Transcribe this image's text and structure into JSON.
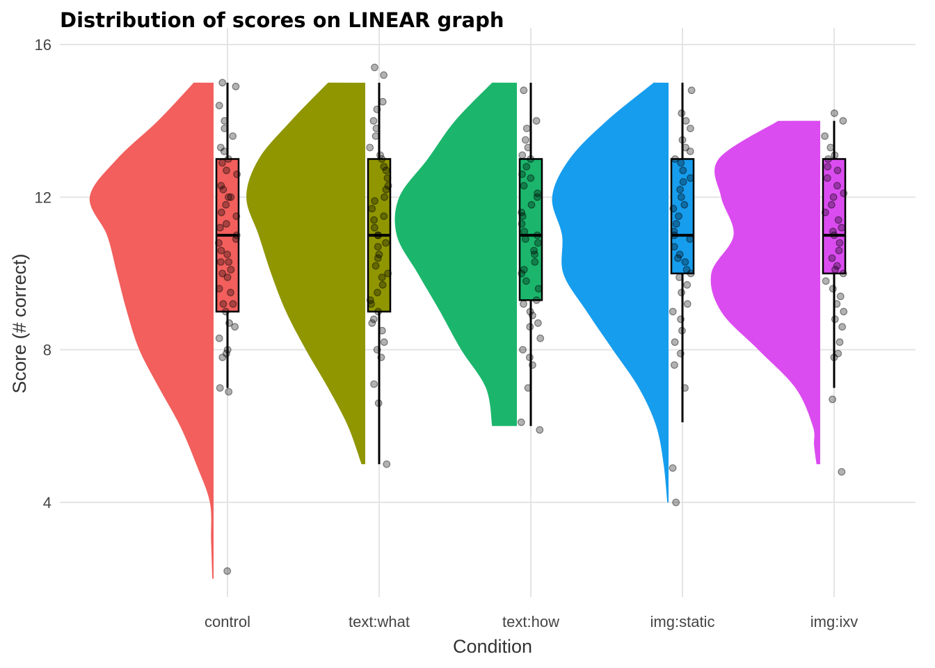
{
  "chart_data": {
    "type": "raincloud",
    "title": "Distribution of scores on LINEAR graph",
    "xlabel": "Condition",
    "ylabel": "Score (# correct)",
    "ylim": [
      1.5,
      16
    ],
    "yticks": [
      4,
      8,
      12,
      16
    ],
    "grid": true,
    "legend": "none",
    "categories": [
      "control",
      "text:what",
      "text:how",
      "img:static",
      "img:ixv"
    ],
    "series": [
      {
        "category": "control",
        "color": "#F25F5C",
        "box": {
          "whisker_low": 7,
          "q1": 9,
          "median": 11,
          "q3": 13,
          "whisker_high": 15
        },
        "density": {
          "y": [
            2,
            3,
            4,
            5,
            6,
            7,
            8,
            9,
            10,
            11,
            12,
            13,
            14,
            15
          ],
          "w": [
            0.01,
            0.02,
            0.03,
            0.14,
            0.27,
            0.44,
            0.6,
            0.7,
            0.78,
            0.86,
            1.0,
            0.78,
            0.45,
            0.16
          ]
        },
        "points": [
          2.2,
          6.9,
          7.0,
          7.8,
          7.9,
          8.0,
          8.3,
          8.6,
          8.7,
          9.0,
          9.2,
          9.2,
          9.5,
          9.6,
          9.9,
          10.0,
          10.1,
          10.3,
          10.3,
          10.5,
          10.6,
          10.8,
          10.9,
          11.0,
          11.2,
          11.3,
          11.5,
          11.6,
          11.8,
          12.0,
          12.0,
          12.2,
          12.3,
          12.6,
          12.7,
          12.9,
          13.0,
          13.2,
          13.3,
          13.6,
          13.8,
          14.0,
          14.4,
          14.9,
          15.0
        ]
      },
      {
        "category": "text:what",
        "color": "#909600",
        "box": {
          "whisker_low": 5,
          "q1": 9,
          "median": 11,
          "q3": 13,
          "whisker_high": 15
        },
        "density": {
          "y": [
            5,
            6,
            7,
            8,
            9,
            10,
            11,
            12,
            13,
            14,
            15
          ],
          "w": [
            0.03,
            0.14,
            0.3,
            0.48,
            0.64,
            0.76,
            0.86,
            0.96,
            0.86,
            0.6,
            0.3
          ]
        },
        "points": [
          5.0,
          6.6,
          7.1,
          7.8,
          8.0,
          8.2,
          8.5,
          8.7,
          8.8,
          9.0,
          9.2,
          9.3,
          9.5,
          9.7,
          9.9,
          10.0,
          10.2,
          10.4,
          10.5,
          10.7,
          10.8,
          11.0,
          11.0,
          11.2,
          11.4,
          11.5,
          11.7,
          11.9,
          12.0,
          12.2,
          12.3,
          12.5,
          12.7,
          12.8,
          13.0,
          13.1,
          13.3,
          13.6,
          13.8,
          14.0,
          14.3,
          14.5,
          15.2,
          15.4
        ]
      },
      {
        "category": "text:how",
        "color": "#1BB66C",
        "box": {
          "whisker_low": 6,
          "q1": 9.3,
          "median": 11,
          "q3": 13,
          "whisker_high": 15
        },
        "density": {
          "y": [
            6,
            7,
            8,
            9,
            10,
            11,
            12,
            13,
            14,
            15
          ],
          "w": [
            0.2,
            0.25,
            0.45,
            0.62,
            0.8,
            0.97,
            0.95,
            0.72,
            0.5,
            0.2
          ]
        },
        "points": [
          5.9,
          6.1,
          7.0,
          7.6,
          7.8,
          8.0,
          8.3,
          8.6,
          8.7,
          8.9,
          9.0,
          9.2,
          9.3,
          9.6,
          9.8,
          10.0,
          10.1,
          10.3,
          10.5,
          10.6,
          10.8,
          10.9,
          11.0,
          11.1,
          11.3,
          11.5,
          11.6,
          11.8,
          12.0,
          12.1,
          12.3,
          12.5,
          12.6,
          12.8,
          13.0,
          13.1,
          13.3,
          13.5,
          13.8,
          14.0,
          14.8
        ]
      },
      {
        "category": "img:static",
        "color": "#169DEE",
        "box": {
          "whisker_low": 6.1,
          "q1": 10,
          "median": 11,
          "q3": 13,
          "whisker_high": 15
        },
        "density": {
          "y": [
            4,
            5,
            6,
            7,
            8,
            9,
            10,
            11,
            12,
            13,
            14,
            15
          ],
          "w": [
            0.01,
            0.04,
            0.1,
            0.24,
            0.45,
            0.66,
            0.85,
            0.86,
            0.94,
            0.8,
            0.5,
            0.12
          ]
        },
        "points": [
          4.0,
          4.9,
          7.0,
          7.6,
          7.9,
          8.2,
          8.5,
          8.8,
          9.0,
          9.2,
          9.5,
          9.7,
          9.9,
          10.0,
          10.1,
          10.3,
          10.4,
          10.5,
          10.7,
          10.9,
          11.0,
          11.1,
          11.3,
          11.5,
          11.7,
          11.8,
          12.0,
          12.2,
          12.4,
          12.5,
          12.7,
          12.9,
          13.0,
          13.2,
          13.3,
          13.5,
          13.8,
          14.0,
          14.2,
          14.8
        ]
      },
      {
        "category": "img:ixv",
        "color": "#DB4CF0",
        "box": {
          "whisker_low": 7,
          "q1": 10,
          "median": 11,
          "q3": 13,
          "whisker_high": 14
        },
        "density": {
          "y": [
            5,
            5.5,
            6,
            7,
            8,
            9,
            10,
            11,
            12,
            13,
            14
          ],
          "w": [
            0.03,
            0.05,
            0.06,
            0.2,
            0.5,
            0.8,
            0.88,
            0.7,
            0.8,
            0.82,
            0.34
          ]
        },
        "points": [
          4.8,
          6.7,
          7.8,
          7.9,
          8.2,
          8.6,
          8.8,
          9.0,
          9.2,
          9.4,
          9.6,
          9.8,
          10.0,
          10.1,
          10.2,
          10.4,
          10.6,
          10.8,
          11.0,
          11.1,
          11.2,
          11.4,
          11.6,
          11.8,
          12.0,
          12.1,
          12.3,
          12.5,
          12.7,
          12.8,
          13.0,
          13.1,
          13.3,
          13.6,
          14.0,
          14.2
        ]
      }
    ]
  }
}
